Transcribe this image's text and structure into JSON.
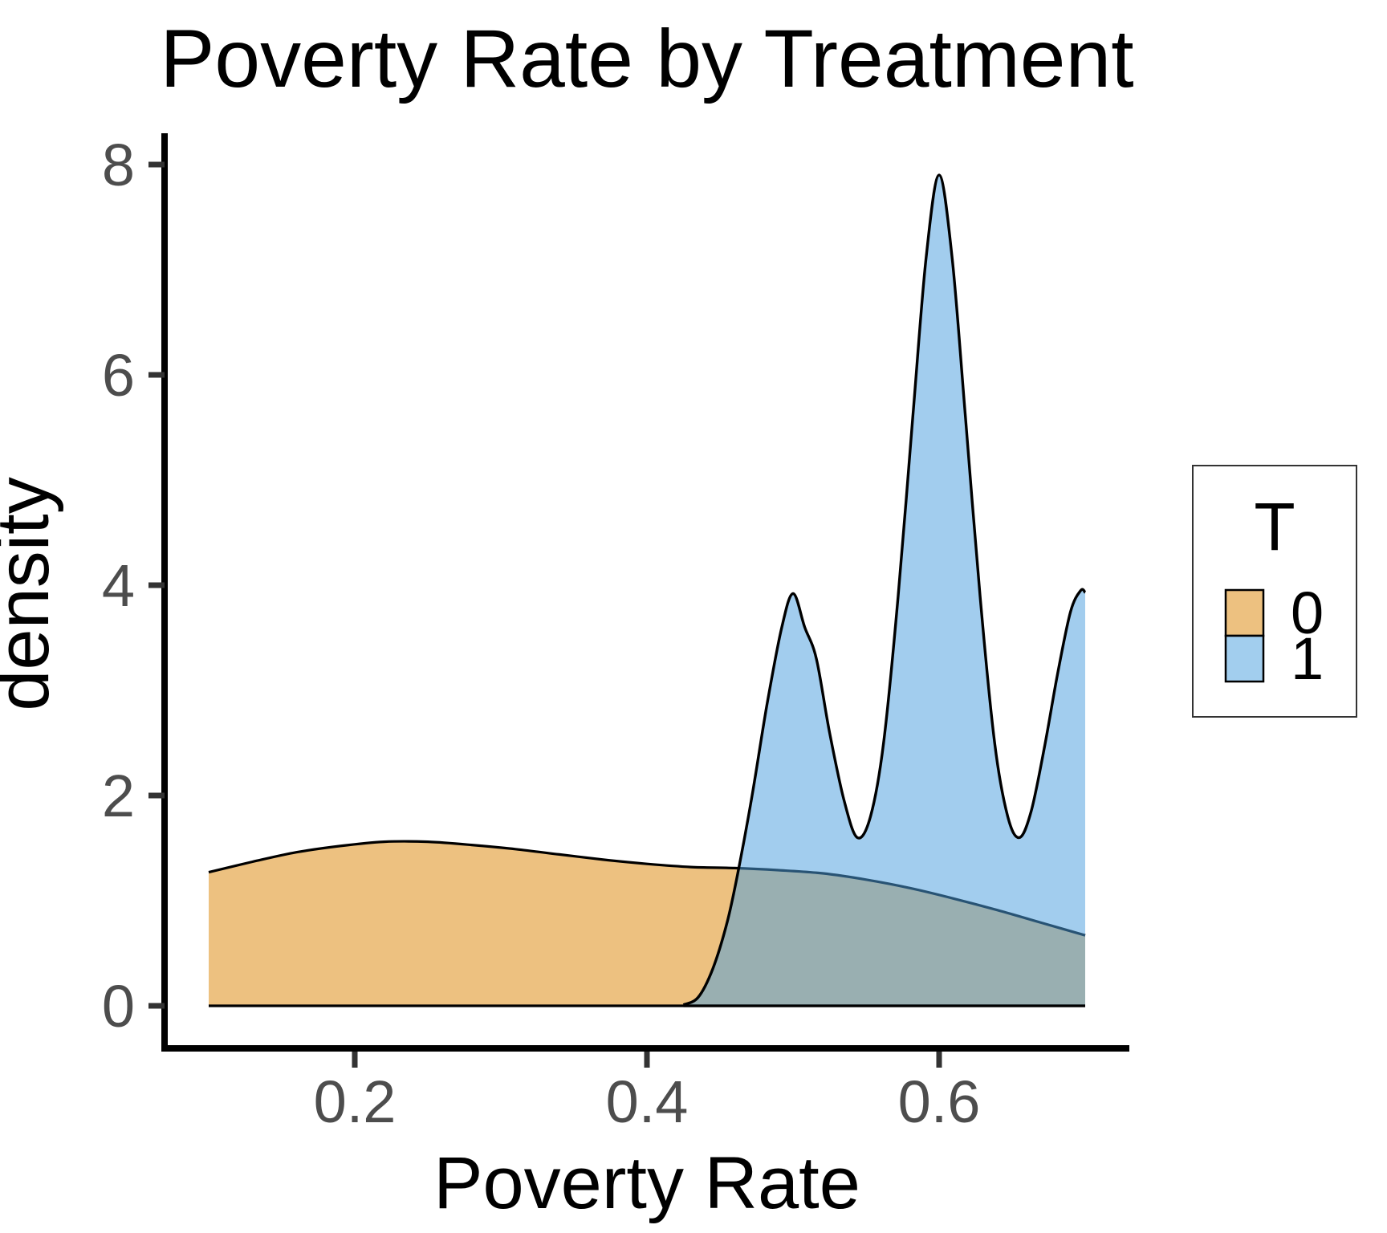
{
  "title": "Poverty Rate by Treatment",
  "axes": {
    "x": {
      "label": "Poverty Rate",
      "tick_labels": [
        "0.2",
        "0.4",
        "0.6"
      ],
      "tick_values": [
        0.2,
        0.4,
        0.6
      ]
    },
    "y": {
      "label": "density",
      "tick_labels": [
        "0",
        "2",
        "4",
        "6",
        "8"
      ],
      "tick_values": [
        0,
        2,
        4,
        6,
        8
      ]
    }
  },
  "legend": {
    "title": "T",
    "entries": [
      {
        "label": "0",
        "swatch_color": "#EDC180"
      },
      {
        "label": "1",
        "swatch_color": "#A2CEEE"
      }
    ]
  },
  "colors": {
    "t0_fill": "#EDC180",
    "t1_fill_rgba": "rgba(77,160,223,0.52)",
    "overlap_apparent": "#9AB4B1",
    "curve_stroke": "#000000",
    "axis_line": "#000000",
    "tick_mark": "#333333",
    "tick_text": "#4d4d4d"
  },
  "chart_data": {
    "type": "area",
    "subtype": "overlaid-kernel-density",
    "title": "Poverty Rate by Treatment",
    "xlabel": "Poverty Rate",
    "ylabel": "density",
    "xlim": [
      0.07,
      0.73
    ],
    "ylim": [
      -0.4,
      8.3
    ],
    "x_ticks": [
      0.2,
      0.4,
      0.6
    ],
    "y_ticks": [
      0,
      2,
      4,
      6,
      8
    ],
    "grid": false,
    "legend_position": "right",
    "series": [
      {
        "name": "0",
        "x_range": [
          0.1,
          0.7
        ],
        "points": [
          [
            0.1,
            1.27
          ],
          [
            0.13,
            1.37
          ],
          [
            0.16,
            1.46
          ],
          [
            0.19,
            1.52
          ],
          [
            0.22,
            1.56
          ],
          [
            0.25,
            1.56
          ],
          [
            0.28,
            1.53
          ],
          [
            0.31,
            1.49
          ],
          [
            0.34,
            1.44
          ],
          [
            0.37,
            1.39
          ],
          [
            0.4,
            1.35
          ],
          [
            0.43,
            1.32
          ],
          [
            0.46,
            1.31
          ],
          [
            0.49,
            1.29
          ],
          [
            0.52,
            1.26
          ],
          [
            0.55,
            1.2
          ],
          [
            0.58,
            1.12
          ],
          [
            0.61,
            1.02
          ],
          [
            0.64,
            0.91
          ],
          [
            0.67,
            0.79
          ],
          [
            0.7,
            0.67
          ]
        ]
      },
      {
        "name": "1",
        "x_range": [
          0.425,
          0.7
        ],
        "points": [
          [
            0.425,
            0.01
          ],
          [
            0.435,
            0.08
          ],
          [
            0.445,
            0.35
          ],
          [
            0.455,
            0.8
          ],
          [
            0.463,
            1.32
          ],
          [
            0.472,
            2.0
          ],
          [
            0.482,
            2.85
          ],
          [
            0.492,
            3.58
          ],
          [
            0.5,
            3.92
          ],
          [
            0.508,
            3.6
          ],
          [
            0.516,
            3.3
          ],
          [
            0.525,
            2.6
          ],
          [
            0.535,
            1.95
          ],
          [
            0.544,
            1.6
          ],
          [
            0.553,
            1.8
          ],
          [
            0.562,
            2.5
          ],
          [
            0.572,
            3.9
          ],
          [
            0.582,
            5.6
          ],
          [
            0.591,
            7.1
          ],
          [
            0.6,
            7.9
          ],
          [
            0.609,
            7.1
          ],
          [
            0.618,
            5.6
          ],
          [
            0.628,
            3.9
          ],
          [
            0.638,
            2.5
          ],
          [
            0.647,
            1.8
          ],
          [
            0.655,
            1.6
          ],
          [
            0.663,
            1.85
          ],
          [
            0.672,
            2.45
          ],
          [
            0.681,
            3.15
          ],
          [
            0.69,
            3.75
          ],
          [
            0.697,
            3.95
          ],
          [
            0.7,
            3.93
          ]
        ]
      }
    ]
  }
}
